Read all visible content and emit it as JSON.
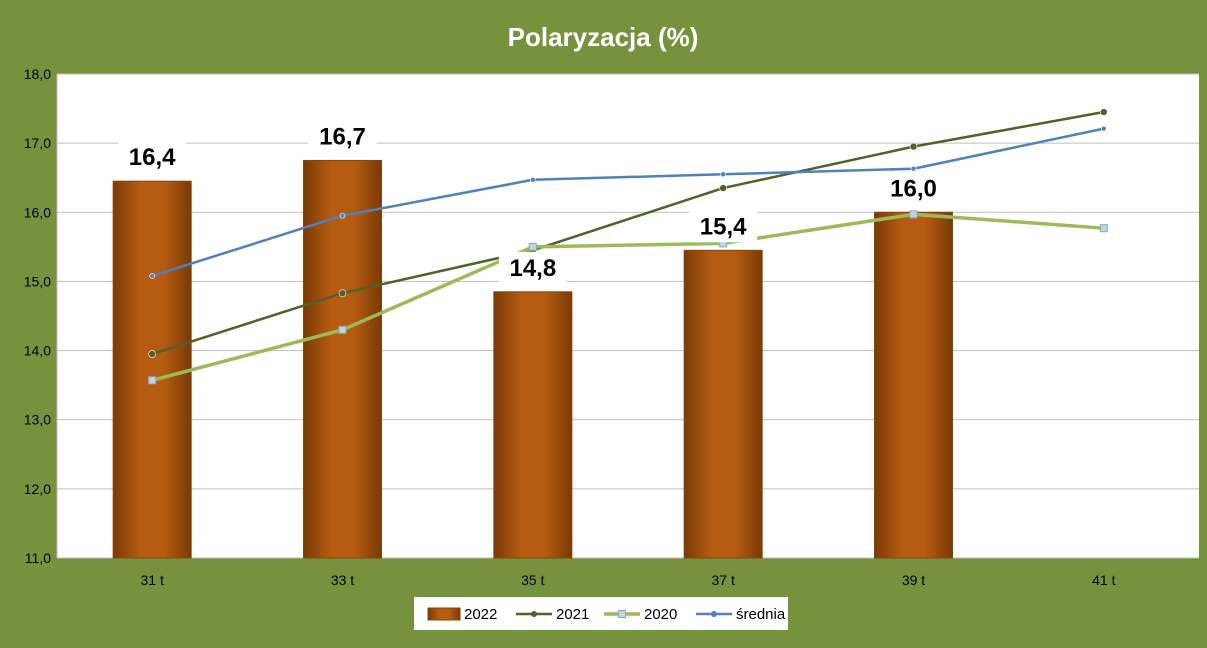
{
  "chart_data": {
    "type": "bar",
    "title": "Polaryzacja (%)",
    "xlabel": "",
    "ylabel": "",
    "categories": [
      "31 t",
      "33 t",
      "35 t",
      "37 t",
      "39 t",
      "41 t"
    ],
    "ylim": [
      11.0,
      18.0
    ],
    "y_ticks": [
      "11,0",
      "12,0",
      "13,0",
      "14,0",
      "15,0",
      "16,0",
      "17,0",
      "18,0"
    ],
    "grid": true,
    "legend_position": "bottom",
    "bars": {
      "name": "2022",
      "values": [
        16.45,
        16.75,
        14.85,
        15.45,
        16.0,
        null
      ],
      "labels": [
        "16,4",
        "16,7",
        "14,8",
        "15,4",
        "16,0",
        ""
      ],
      "color": "#a04f0c"
    },
    "series": [
      {
        "name": "2021",
        "type": "line",
        "values": [
          13.95,
          14.83,
          15.45,
          16.35,
          16.95,
          17.45
        ],
        "color": "#4f6228"
      },
      {
        "name": "2020",
        "type": "line",
        "values": [
          13.57,
          14.3,
          15.5,
          15.55,
          15.97,
          15.77
        ],
        "color": "#9bbb59"
      },
      {
        "name": "średnia",
        "type": "line",
        "values": [
          15.08,
          15.95,
          16.47,
          16.55,
          16.63,
          17.21
        ],
        "color": "#4f81bd"
      }
    ]
  }
}
